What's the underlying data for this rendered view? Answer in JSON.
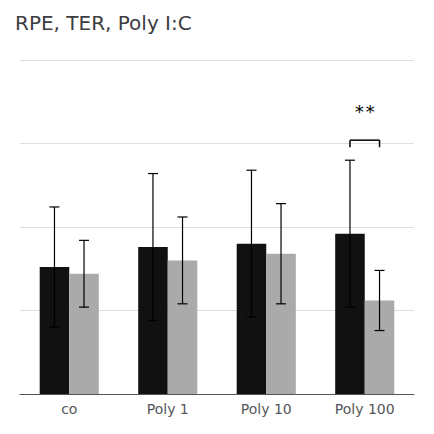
{
  "chart_data": {
    "type": "bar",
    "title": "RPE, TER, Poly I:C",
    "categories": [
      "co",
      "Poly 1",
      "Poly 10",
      "Poly 100"
    ],
    "series": [
      {
        "color": "#111111",
        "values": [
          0.38,
          0.44,
          0.45,
          0.48
        ],
        "errors": [
          0.18,
          0.22,
          0.22,
          0.22
        ]
      },
      {
        "color": "#aaaaaa",
        "values": [
          0.36,
          0.4,
          0.42,
          0.28
        ],
        "errors": [
          0.1,
          0.13,
          0.15,
          0.09
        ]
      }
    ],
    "ylim": [
      0,
      1.0
    ],
    "yticks": [
      0.0,
      0.25,
      0.5,
      0.75,
      1.0
    ],
    "grid": true,
    "tick_labels": "x",
    "annotations": [
      {
        "text": "**",
        "category": "Poly 100",
        "y": 0.82,
        "bracket_y": 0.76
      }
    ]
  }
}
